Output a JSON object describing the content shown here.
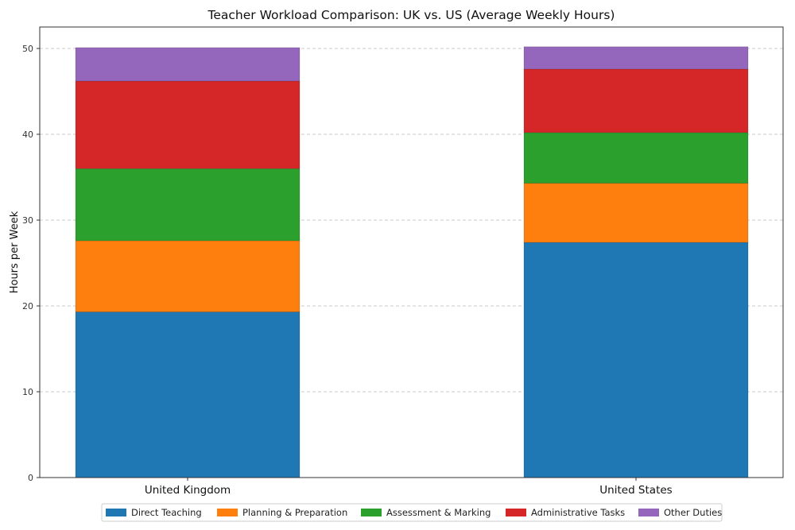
{
  "chart_data": {
    "type": "bar",
    "stacked": true,
    "title": "Teacher Workload Comparison: UK vs. US (Average Weekly Hours)",
    "xlabel": "",
    "ylabel": "Hours per Week",
    "categories": [
      "United Kingdom",
      "United States"
    ],
    "ylim": [
      0,
      52.5
    ],
    "yticks": [
      0,
      10,
      20,
      30,
      40,
      50
    ],
    "grid": true,
    "legend_position": "bottom-center",
    "series": [
      {
        "name": "Direct Teaching",
        "color": "#1f77b4",
        "values": [
          19.3,
          27.4
        ]
      },
      {
        "name": "Planning & Preparation",
        "color": "#ff7f0e",
        "values": [
          8.3,
          6.9
        ]
      },
      {
        "name": "Assessment & Marking",
        "color": "#2ca02c",
        "values": [
          8.4,
          5.9
        ]
      },
      {
        "name": "Administrative Tasks",
        "color": "#d62728",
        "values": [
          10.2,
          7.4
        ]
      },
      {
        "name": "Other Duties",
        "color": "#9467bd",
        "values": [
          3.9,
          2.6
        ]
      }
    ]
  }
}
